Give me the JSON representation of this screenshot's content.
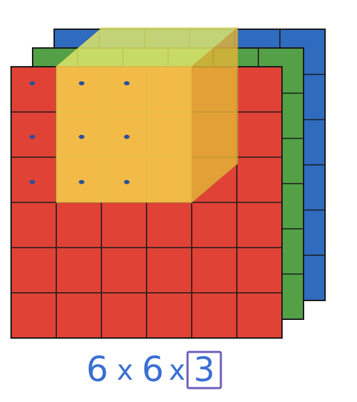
{
  "diagram": {
    "grid": {
      "rows": 6,
      "cols": 6
    },
    "channels": [
      {
        "name": "blue",
        "color": "#2f6bbf"
      },
      {
        "name": "green",
        "color": "#53a047"
      },
      {
        "name": "red",
        "color": "#e04236"
      }
    ],
    "filter": {
      "size": [
        3,
        3,
        3
      ],
      "front_color": "#f3c64a",
      "top_color": "#dce56a",
      "side_color": "#e2b437"
    },
    "dots": [
      [
        0,
        0
      ],
      [
        0,
        1
      ],
      [
        0,
        2
      ],
      [
        1,
        0
      ],
      [
        1,
        1
      ],
      [
        1,
        2
      ],
      [
        2,
        0
      ],
      [
        2,
        1
      ],
      [
        2,
        2
      ]
    ],
    "annotation": {
      "part_1": "6",
      "x_1": "x",
      "part_2": "6",
      "x_2": "x",
      "part_3": "3",
      "text_color": "#3a6fd2",
      "box_color": "#6e5bbd"
    }
  }
}
